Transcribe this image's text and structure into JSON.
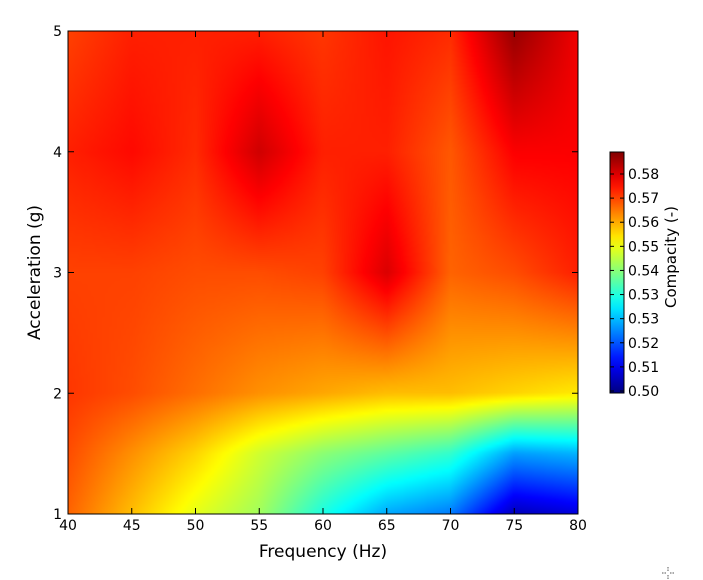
{
  "chart_data": {
    "type": "heatmap",
    "title": "",
    "xlabel": "Frequency (Hz)",
    "ylabel": "Acceleration (g)",
    "x_ticks": [
      "40",
      "45",
      "50",
      "55",
      "60",
      "65",
      "70",
      "75",
      "80"
    ],
    "y_ticks": [
      "1",
      "2",
      "3",
      "4",
      "5"
    ],
    "xlim": [
      40,
      80
    ],
    "ylim": [
      1,
      5
    ],
    "x": [
      40,
      45,
      50,
      55,
      60,
      65,
      70,
      75,
      80
    ],
    "y": [
      1,
      1.5,
      2,
      3,
      4,
      5
    ],
    "z": [
      [
        0.57,
        0.562,
        0.554,
        0.548,
        0.536,
        0.526,
        0.522,
        0.505,
        0.508
      ],
      [
        0.572,
        0.566,
        0.56,
        0.552,
        0.546,
        0.542,
        0.538,
        0.525,
        0.527
      ],
      [
        0.574,
        0.572,
        0.569,
        0.566,
        0.564,
        0.562,
        0.562,
        0.56,
        0.558
      ],
      [
        0.573,
        0.573,
        0.572,
        0.572,
        0.573,
        0.582,
        0.57,
        0.572,
        0.576
      ],
      [
        0.576,
        0.578,
        0.575,
        0.583,
        0.576,
        0.576,
        0.571,
        0.579,
        0.579
      ],
      [
        0.573,
        0.576,
        0.576,
        0.576,
        0.574,
        0.577,
        0.575,
        0.588,
        0.58
      ]
    ],
    "zlim": [
      0.5,
      0.59
    ],
    "colormap": "jet",
    "colorbar": {
      "label": "Compacity (-)",
      "ticks": [
        "0.58",
        "0.57",
        "0.56",
        "0.55",
        "0.54",
        "0.53",
        "0.53",
        "0.52",
        "0.51",
        "0.50"
      ],
      "placement": "right"
    },
    "grid": false
  }
}
